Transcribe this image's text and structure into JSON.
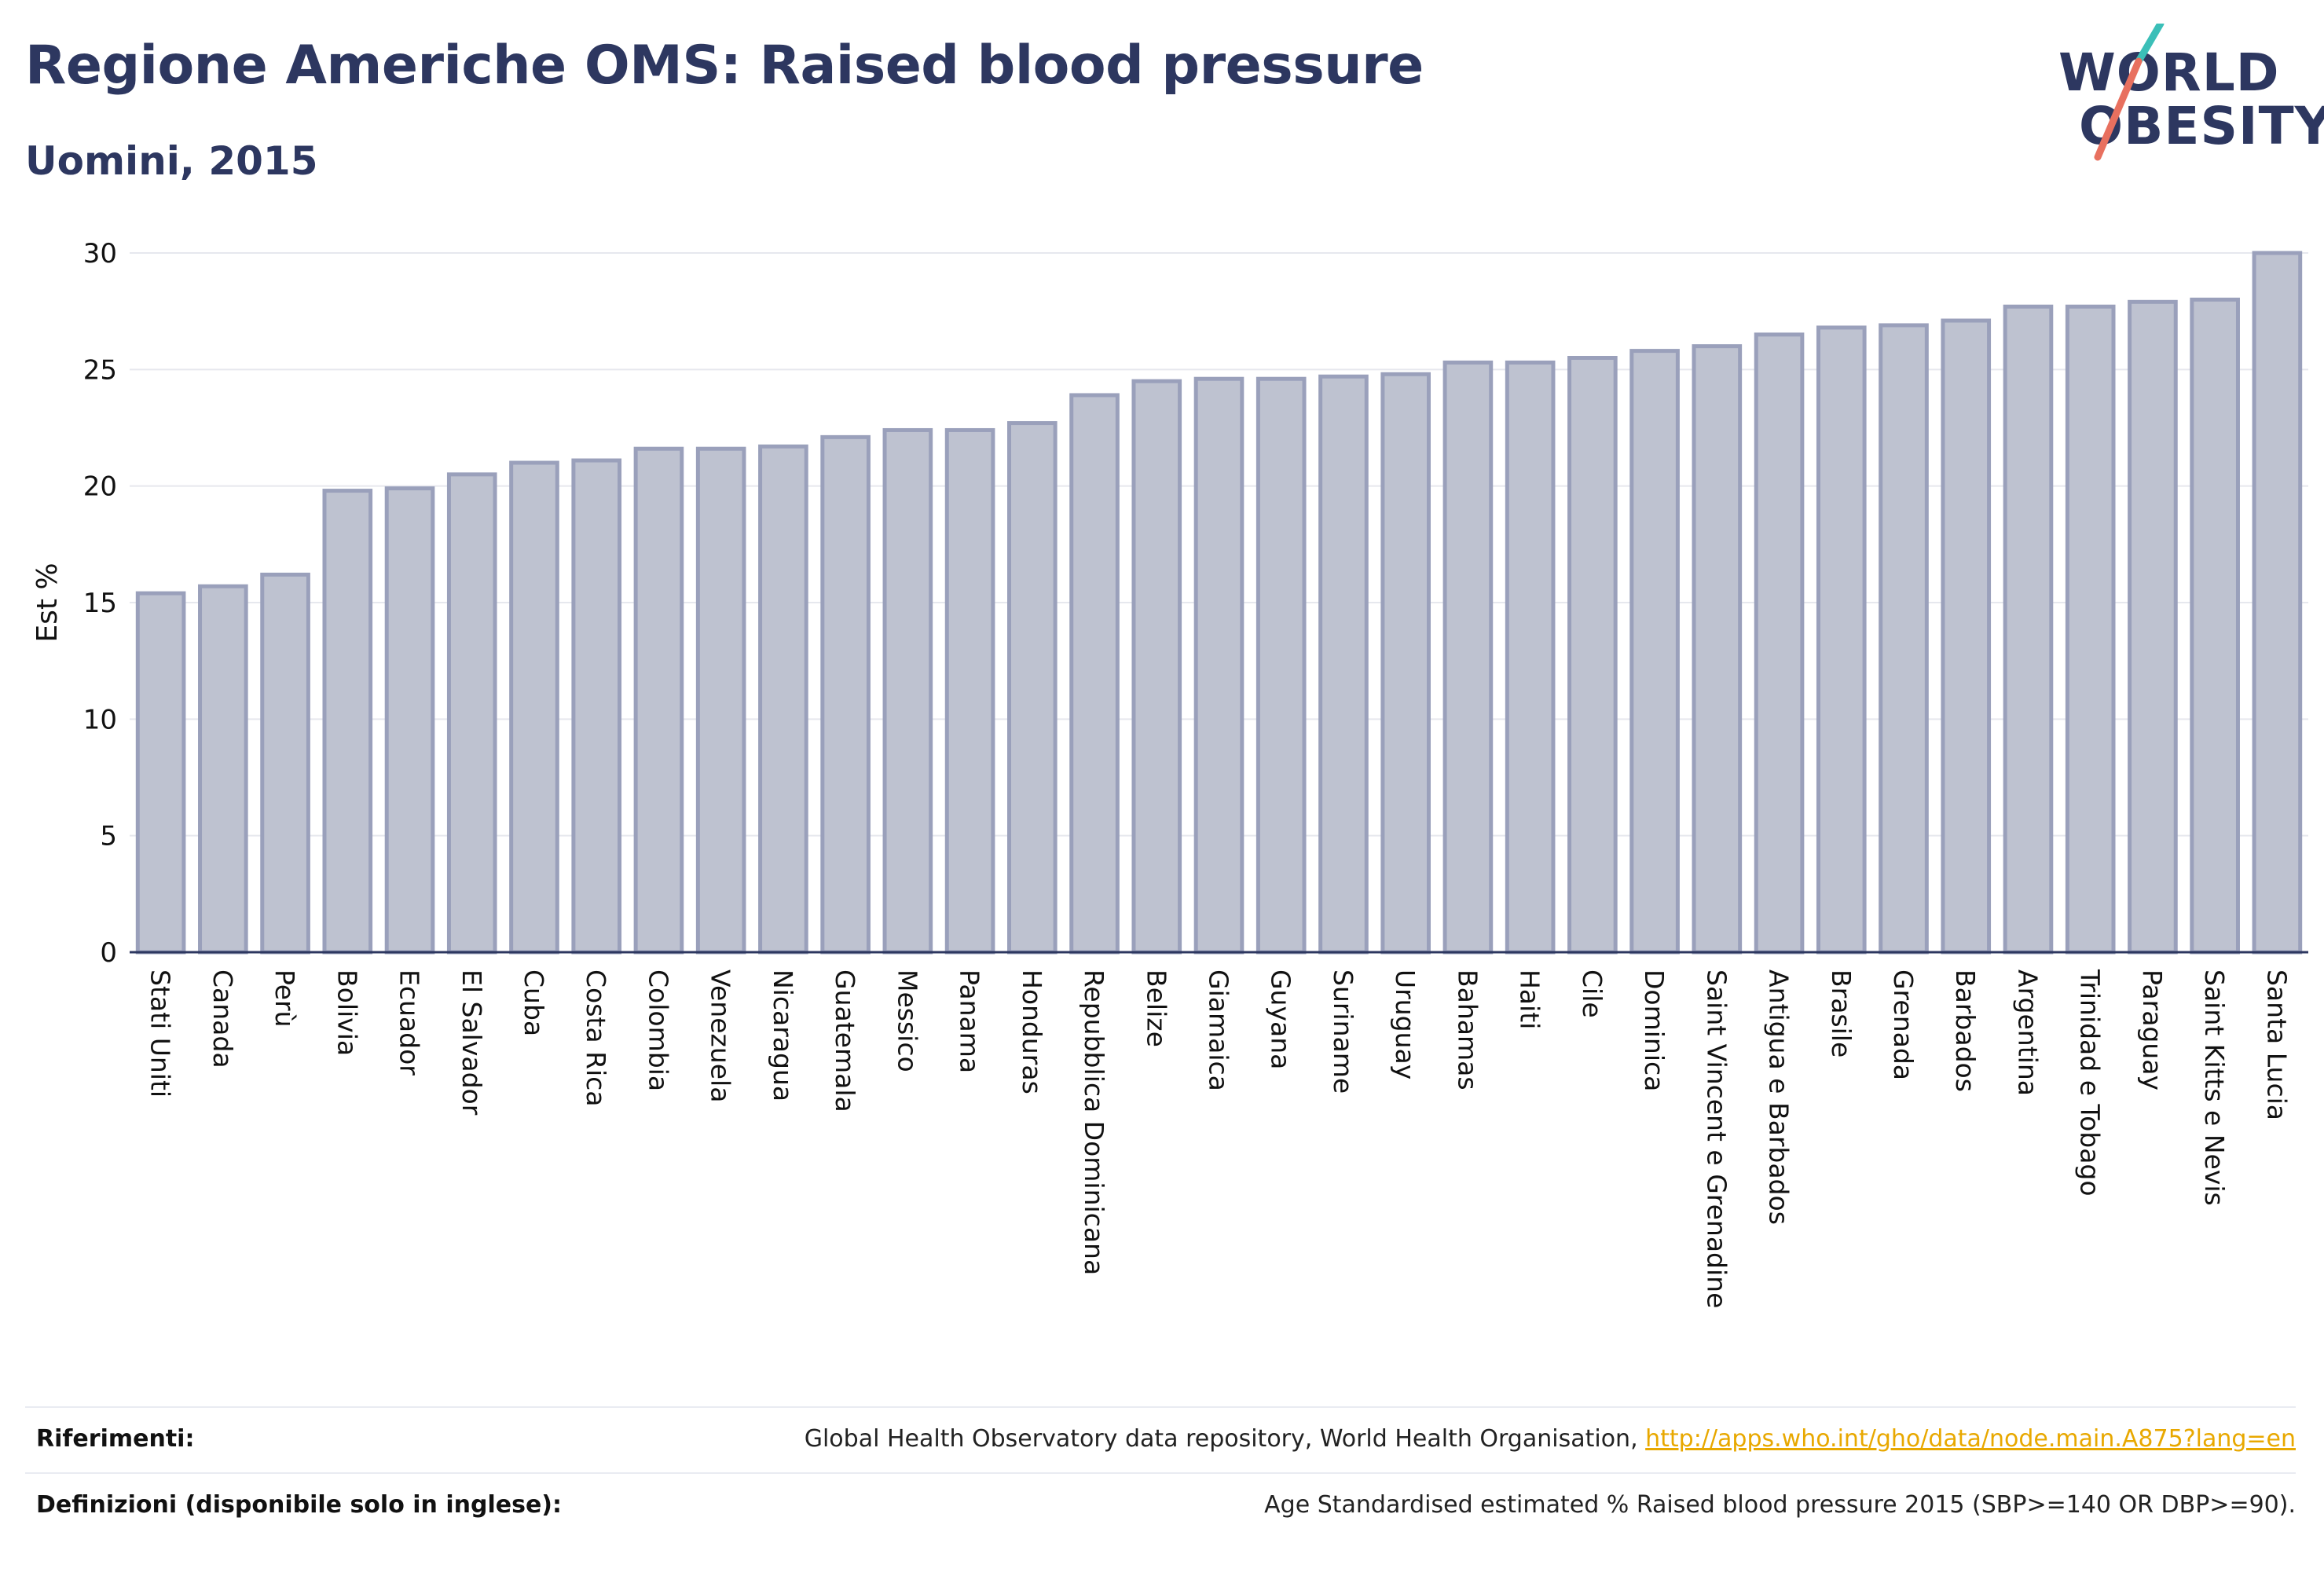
{
  "header": {
    "title": "Regione Americhe OMS: Raised blood pressure",
    "subtitle": "Uomini, 2015"
  },
  "logo": {
    "line1": "WORLD",
    "line2": "OBESITY",
    "colors": {
      "text": "#2d3760",
      "slash_top": "#3bbfb8",
      "slash_bottom": "#e8705f"
    }
  },
  "chart_data": {
    "type": "bar",
    "title": "Regione Americhe OMS: Raised blood pressure",
    "subtitle": "Uomini, 2015",
    "xlabel": "",
    "ylabel": "Est %",
    "ylim": [
      0,
      30
    ],
    "yticks": [
      0,
      5,
      10,
      15,
      20,
      25,
      30
    ],
    "grid": true,
    "bar_fill": "#bec2d0",
    "bar_stroke": "#9aa0bb",
    "categories": [
      "Stati Uniti",
      "Canada",
      "Perù",
      "Bolivia",
      "Ecuador",
      "El Salvador",
      "Cuba",
      "Costa Rica",
      "Colombia",
      "Venezuela",
      "Nicaragua",
      "Guatemala",
      "Messico",
      "Panama",
      "Honduras",
      "Repubblica Dominicana",
      "Belize",
      "Giamaica",
      "Guyana",
      "Suriname",
      "Uruguay",
      "Bahamas",
      "Haiti",
      "Cile",
      "Dominica",
      "Saint Vincent e Grenadine",
      "Antigua e Barbados",
      "Brasile",
      "Grenada",
      "Barbados",
      "Argentina",
      "Trinidad e Tobago",
      "Paraguay",
      "Saint Kitts e Nevis",
      "Santa Lucia"
    ],
    "values": [
      15.4,
      15.7,
      16.2,
      19.8,
      19.9,
      20.5,
      21.0,
      21.1,
      21.6,
      21.6,
      21.7,
      22.1,
      22.4,
      22.4,
      22.7,
      23.9,
      24.5,
      24.6,
      24.6,
      24.7,
      24.8,
      25.3,
      25.3,
      25.5,
      25.8,
      26.0,
      26.5,
      26.8,
      26.9,
      27.1,
      27.7,
      27.7,
      27.9,
      28.0,
      30.0
    ]
  },
  "footer": {
    "references_label": "Riferimenti:",
    "references_text": "Global Health Observatory data repository, World Health Organisation, ",
    "references_link": "http://apps.who.int/gho/data/node.main.A875?lang=en",
    "definitions_label": "Definizioni (disponibile solo in inglese):",
    "definitions_text": "Age Standardised estimated % Raised blood pressure 2015 (SBP>=140 OR DBP>=90)."
  }
}
